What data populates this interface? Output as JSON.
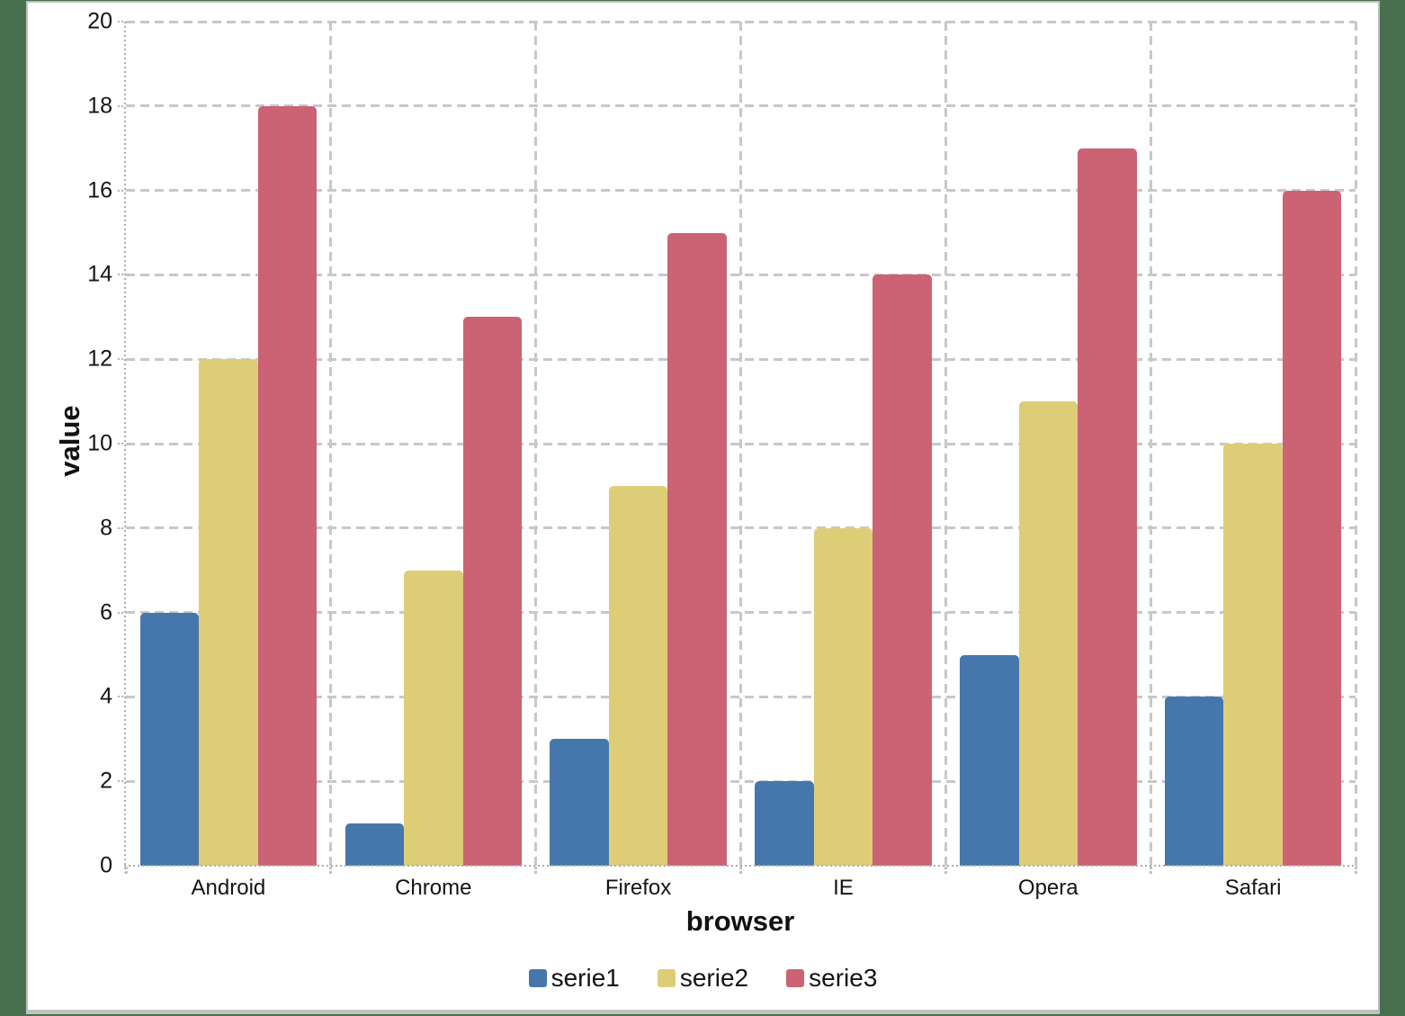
{
  "window": {
    "background_color": "#48704E",
    "panel_background": "#FFFFFF",
    "panel_border_color": "#BFC2BF"
  },
  "chart_data": {
    "type": "bar",
    "title": "",
    "xlabel": "browser",
    "ylabel": "value",
    "categories": [
      "Android",
      "Chrome",
      "Firefox",
      "IE",
      "Opera",
      "Safari"
    ],
    "series": [
      {
        "name": "serie1",
        "color": "#4677AC",
        "values": [
          6,
          1,
          3,
          2,
          5,
          4
        ]
      },
      {
        "name": "serie2",
        "color": "#DECD77",
        "values": [
          12,
          7,
          9,
          8,
          11,
          10
        ]
      },
      {
        "name": "serie3",
        "color": "#CB6375",
        "values": [
          18,
          13,
          15,
          14,
          17,
          16
        ]
      }
    ],
    "ylim": [
      0,
      20
    ],
    "yticks": [
      0,
      2,
      4,
      6,
      8,
      10,
      12,
      14,
      16,
      18,
      20
    ],
    "grid": true,
    "gridline_color": "#C8C8C8",
    "axis_line_color": "#ABABAB",
    "legend_position": "bottom"
  }
}
